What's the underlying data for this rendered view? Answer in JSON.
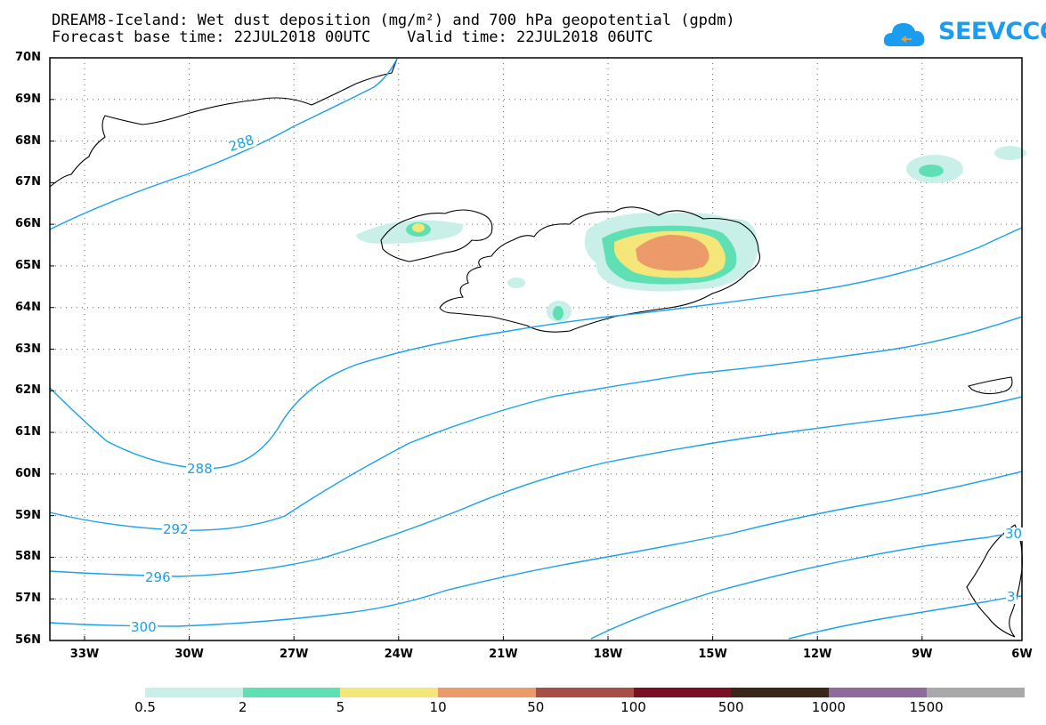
{
  "header": {
    "title_line1": "DREAM8-Iceland: Wet dust deposition (mg/m²) and 700 hPa geopotential (gpdm)",
    "title_line2": "Forecast base time: 22JUL2018 00UTC    Valid time: 22JUL2018 06UTC",
    "logo_text": "SEEVCCC"
  },
  "map": {
    "lat_labels": [
      "70N",
      "69N",
      "68N",
      "67N",
      "66N",
      "65N",
      "64N",
      "63N",
      "62N",
      "61N",
      "60N",
      "59N",
      "58N",
      "57N",
      "56N"
    ],
    "lon_labels": [
      "33W",
      "30W",
      "27W",
      "24W",
      "21W",
      "18W",
      "15W",
      "12W",
      "9W",
      "6W"
    ],
    "contour_color": "#1aa0ec",
    "contour_labels": [
      "288",
      "288",
      "292",
      "296",
      "300",
      "30",
      "3"
    ]
  },
  "colorbar": {
    "colors": [
      "#c8f0e8",
      "#5ee0b4",
      "#f5e67a",
      "#ec9a6a",
      "#a84e46",
      "#7a0f24",
      "#3a2618",
      "#8f6a9e",
      "#a9a9a9"
    ],
    "labels": [
      "0.5",
      "2",
      "5",
      "10",
      "50",
      "100",
      "500",
      "1000",
      "1500"
    ]
  }
}
